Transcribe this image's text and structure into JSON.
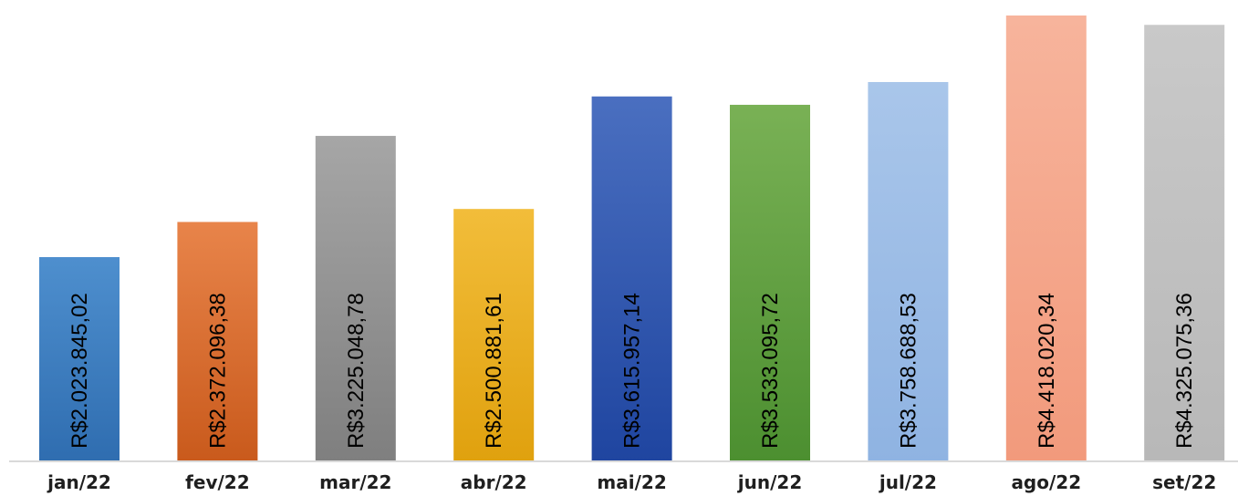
{
  "chart_data": {
    "type": "bar",
    "categories": [
      "jan/22",
      "fev/22",
      "mar/22",
      "abr/22",
      "mai/22",
      "jun/22",
      "jul/22",
      "ago/22",
      "set/22"
    ],
    "values": [
      2023845.02,
      2372096.38,
      3225048.78,
      2500881.61,
      3615957.14,
      3533095.72,
      3758688.53,
      4418020.34,
      4325075.36
    ],
    "data_labels": [
      "R$2.023.845,02",
      "R$2.372.096,38",
      "R$3.225.048,78",
      "R$2.500.881,61",
      "R$3.615.957,14",
      "R$3.533.095,72",
      "R$3.758.688,53",
      "R$4.418.020,34",
      "R$4.325.075,36"
    ],
    "bar_colors": [
      [
        "#4e8fce",
        "#2f6db0"
      ],
      [
        "#e8844a",
        "#c95a1c"
      ],
      [
        "#a6a6a6",
        "#7f7f7f"
      ],
      [
        "#f2bd3a",
        "#e0a10e"
      ],
      [
        "#4a6fc0",
        "#1f45a0"
      ],
      [
        "#79b155",
        "#4c8f30"
      ],
      [
        "#a9c6ea",
        "#8fb3e2"
      ],
      [
        "#f7b49c",
        "#f29a7c"
      ],
      [
        "#c9c9c9",
        "#b8b8b8"
      ]
    ],
    "ylim": [
      0,
      4418020.34
    ],
    "title": "",
    "xlabel": "",
    "ylabel": "",
    "grid": false,
    "legend": "none"
  }
}
